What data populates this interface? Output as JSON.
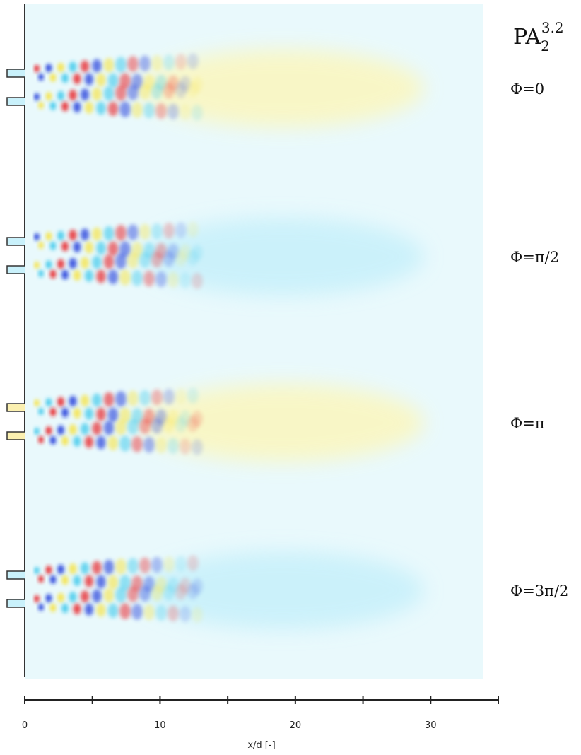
{
  "chart_data": {
    "type": "field",
    "title": {
      "base": "PA",
      "sub": "2",
      "sup": "3.2"
    },
    "panels": [
      "Φ=0",
      "Φ=π/2",
      "Φ=π",
      "Φ=3π/2"
    ],
    "xlabel": "x/d [-]",
    "xlim": [
      0,
      35
    ],
    "xticks": [
      0,
      10,
      20,
      30
    ],
    "xminor": [
      5,
      15,
      25,
      35
    ]
  }
}
